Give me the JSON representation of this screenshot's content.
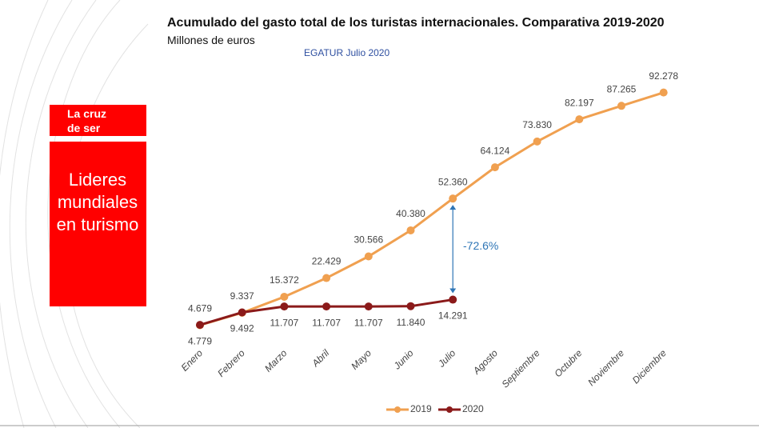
{
  "sidebar": {
    "tagline": [
      "La cruz",
      "de ser"
    ],
    "headline": [
      "Lideres",
      "mundiales",
      "en turismo"
    ]
  },
  "chart_data": {
    "type": "line",
    "title": "Acumulado del gasto total de los turistas internacionales. Comparativa 2019-2020",
    "subtitle": "Millones de euros",
    "source_note": "EGATUR Julio 2020",
    "annotation": "-72.6%",
    "categories": [
      "Enero",
      "Febrero",
      "Marzo",
      "Abril",
      "Mayo",
      "Junio",
      "Julio",
      "Agosto",
      "Septiembre",
      "Octubre",
      "Noviembre",
      "Diciembre"
    ],
    "series": [
      {
        "name": "2019",
        "color": "#f0a050",
        "values": [
          4679,
          9337,
          15372,
          22429,
          30566,
          40380,
          52360,
          64124,
          73830,
          82197,
          87265,
          92278
        ],
        "value_labels": [
          "4.679",
          "9.337",
          "15.372",
          "22.429",
          "30.566",
          "40.380",
          "52.360",
          "64.124",
          "73.830",
          "82.197",
          "87.265",
          "92.278"
        ]
      },
      {
        "name": "2020",
        "color": "#8b1a1a",
        "values": [
          4779,
          9492,
          11707,
          11707,
          11707,
          11840,
          14291,
          null,
          null,
          null,
          null,
          null
        ],
        "value_labels": [
          "4.779",
          "9.492",
          "11.707",
          "11.707",
          "11.707",
          "11.840",
          "14.291",
          null,
          null,
          null,
          null,
          null
        ]
      }
    ],
    "ylim": [
      0,
      95000
    ],
    "legend": "bottom"
  }
}
